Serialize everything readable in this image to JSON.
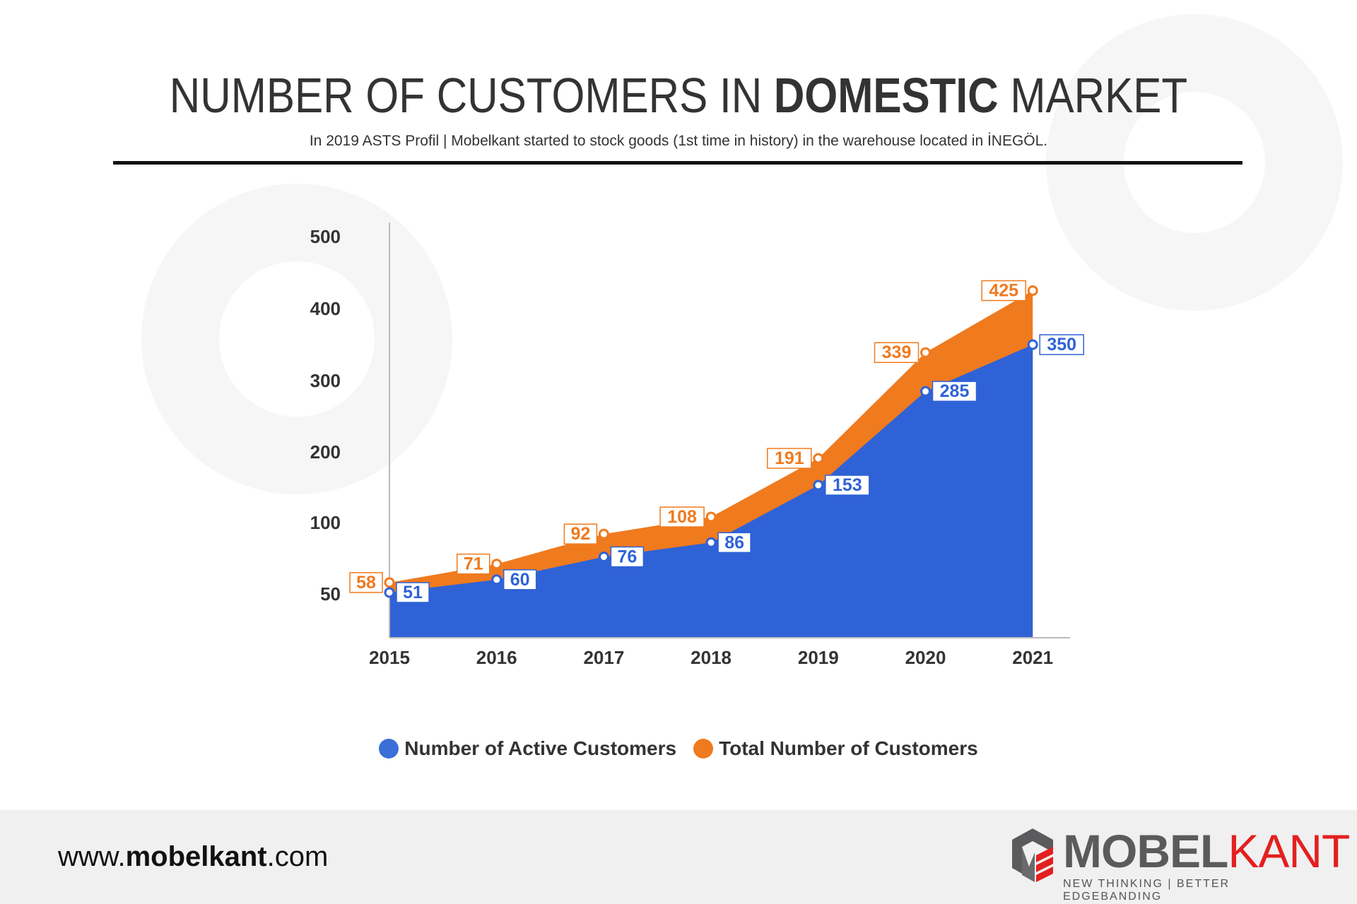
{
  "header": {
    "title_pre": "NUMBER OF CUSTOMERS IN ",
    "title_bold": "DOMESTIC",
    "title_post": " MARKET",
    "subtitle": "In 2019 ASTS Profil | Mobelkant started to stock goods (1st time in history) in the warehouse located in İNEGÖL."
  },
  "chart_data": {
    "type": "area",
    "title": "NUMBER OF CUSTOMERS IN DOMESTIC MARKET",
    "categories": [
      "2015",
      "2016",
      "2017",
      "2018",
      "2019",
      "2020",
      "2021"
    ],
    "yticks": [
      50,
      100,
      200,
      300,
      400,
      500
    ],
    "series": [
      {
        "name": "Total Number of Customers",
        "color": "#f07a1e",
        "values": [
          58,
          71,
          92,
          108,
          191,
          339,
          425
        ]
      },
      {
        "name": "Number of Active Customers",
        "color": "#2f62d6",
        "values": [
          51,
          60,
          76,
          86,
          153,
          285,
          350
        ]
      }
    ],
    "legend_position": "bottom",
    "grid": false
  },
  "legend": [
    {
      "label": "Number of Active Customers",
      "color": "#2f62d6"
    },
    {
      "label": "Total Number of Customers",
      "color": "#f07a1e"
    }
  ],
  "footer": {
    "url_pre": "www.",
    "url_bold": "mobelkant",
    "url_post": ".com",
    "brand_a": "MOBEL",
    "brand_b": "KANT",
    "tagline": "NEW THINKING | BETTER EDGEBANDING"
  }
}
